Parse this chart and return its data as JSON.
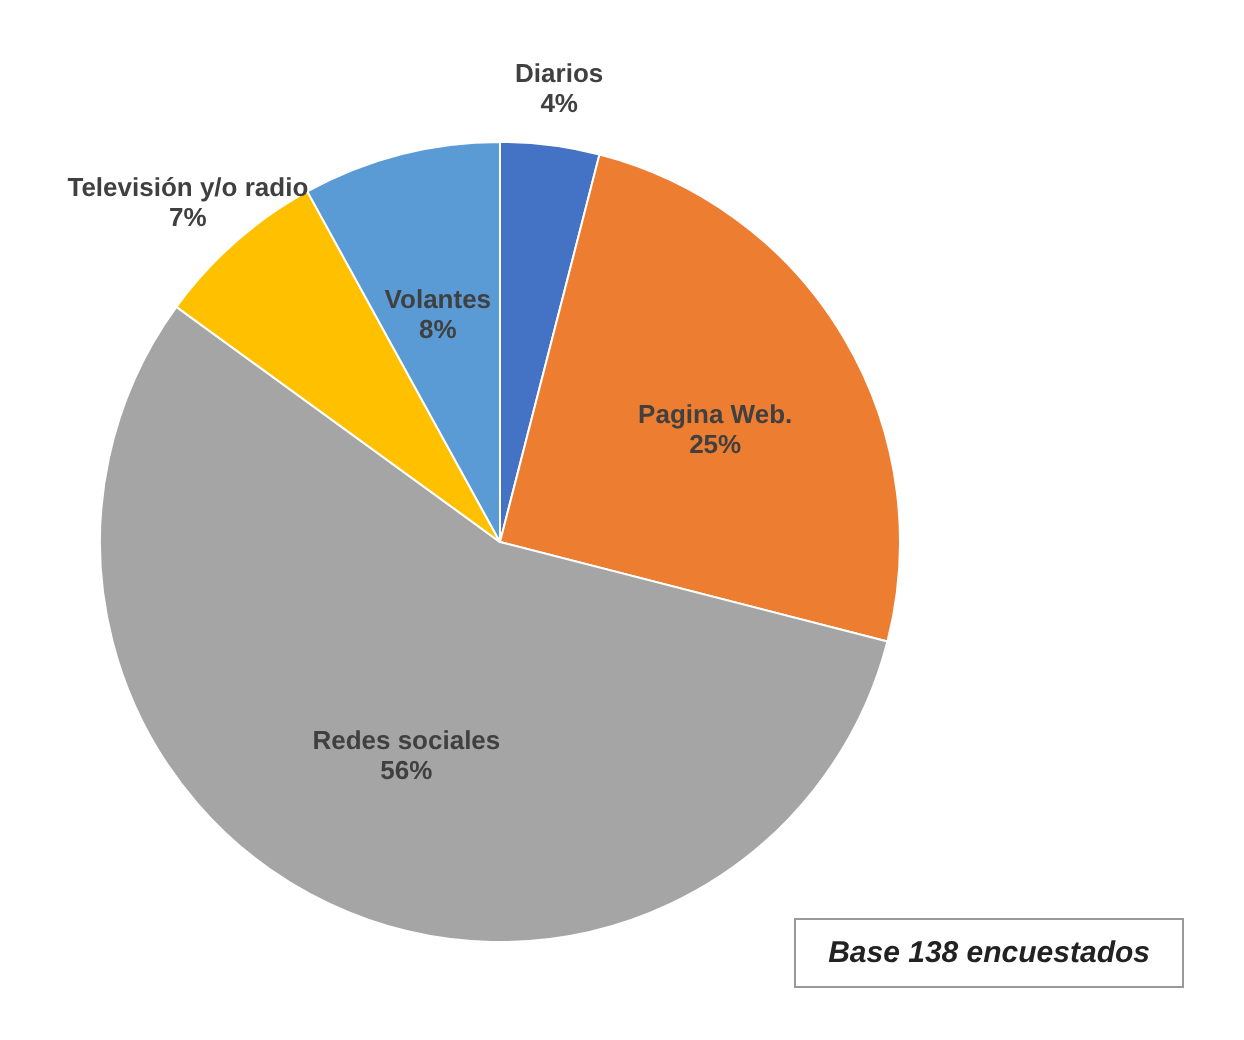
{
  "chart_data": {
    "type": "pie",
    "categories": [
      "Diarios",
      "Pagina Web.",
      "Redes sociales",
      "Televisión y/o radio",
      "Volantes"
    ],
    "values": [
      4,
      25,
      56,
      7,
      8
    ],
    "colors": [
      "#4472c4",
      "#ed7d31",
      "#a5a5a5",
      "#ffc000",
      "#5b9bd5"
    ],
    "value_labels": [
      "4%",
      "25%",
      "56%",
      "7%",
      "8%"
    ],
    "legend": false,
    "annotations": [
      "Base 138 encuestados"
    ]
  }
}
